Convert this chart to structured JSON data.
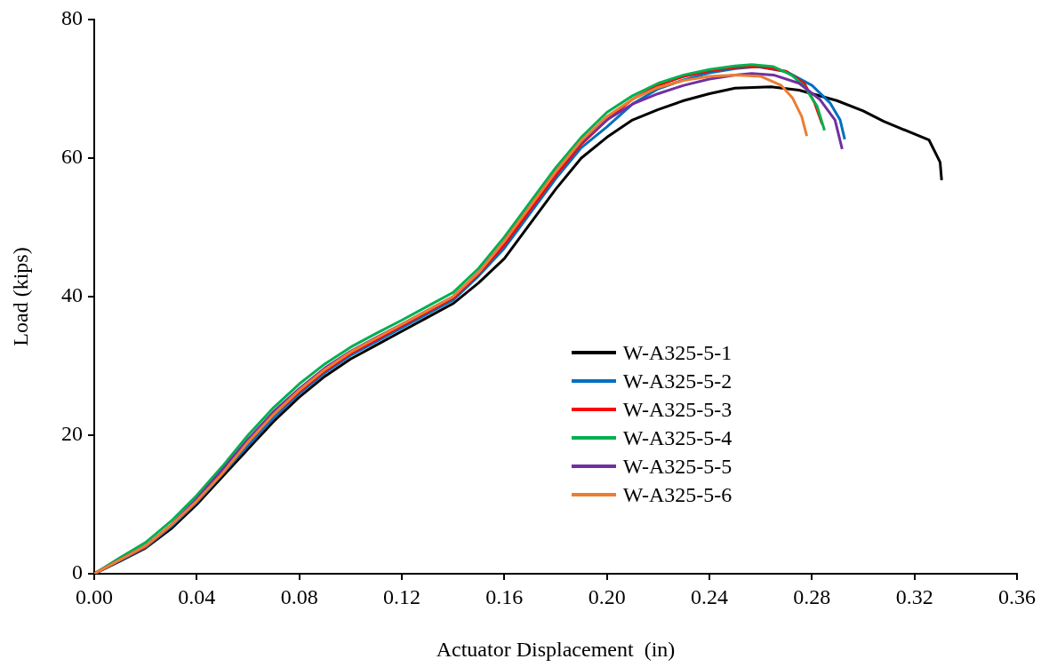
{
  "chart_data": {
    "type": "line",
    "xlabel": "Actuator Displacement  (in)",
    "ylabel": "Load (kips)",
    "xlim": [
      0,
      0.36
    ],
    "xticks": [
      {
        "value": 0,
        "label": "0.00"
      },
      {
        "value": 0.04,
        "label": "0.04"
      },
      {
        "value": 0.08,
        "label": "0.08"
      },
      {
        "value": 0.12,
        "label": "0.12"
      },
      {
        "value": 0.16,
        "label": "0.16"
      },
      {
        "value": 0.2,
        "label": "0.20"
      },
      {
        "value": 0.24,
        "label": "0.24"
      },
      {
        "value": 0.28,
        "label": "0.28"
      },
      {
        "value": 0.32,
        "label": "0.32"
      },
      {
        "value": 0.36,
        "label": "0.36"
      }
    ],
    "ylim": [
      0,
      80
    ],
    "yticks": [
      0,
      20,
      40,
      60,
      80
    ],
    "grid": false,
    "legend": "bottom right",
    "marker": "none",
    "line_style": "solid",
    "series": [
      {
        "name": "W-A325-5-1",
        "color": "#000000",
        "x": [
          0,
          0.01,
          0.02,
          0.03,
          0.04,
          0.05,
          0.06,
          0.07,
          0.08,
          0.09,
          0.1,
          0.11,
          0.12,
          0.13,
          0.14,
          0.15,
          0.16,
          0.17,
          0.18,
          0.19,
          0.2,
          0.21,
          0.22,
          0.23,
          0.24,
          0.25,
          0.264,
          0.275,
          0.2897,
          0.3,
          0.308,
          0.3257,
          0.33,
          0.3306
        ],
        "values": [
          0,
          1.8,
          3.7,
          6.5,
          10,
          14,
          18,
          22,
          25.5,
          28.5,
          31,
          33,
          35,
          37,
          39,
          42,
          45.5,
          50.5,
          55.5,
          60,
          63,
          65.5,
          67,
          68.3,
          69.3,
          70.1,
          70.3,
          69.8,
          68.3,
          66.8,
          65.3,
          62.6,
          59.4,
          56.8
        ]
      },
      {
        "name": "W-A325-5-2",
        "color": "#0070c0",
        "x": [
          0,
          0.01,
          0.02,
          0.03,
          0.04,
          0.05,
          0.06,
          0.07,
          0.08,
          0.09,
          0.1,
          0.11,
          0.12,
          0.13,
          0.14,
          0.15,
          0.16,
          0.17,
          0.18,
          0.19,
          0.2,
          0.21,
          0.22,
          0.23,
          0.24,
          0.25,
          0.2586,
          0.27,
          0.28,
          0.287,
          0.291,
          0.2928
        ],
        "values": [
          0,
          1.9,
          3.8,
          6.8,
          10.3,
          14.4,
          18.5,
          22.5,
          26,
          29,
          31.5,
          33.5,
          35.5,
          37.5,
          39.5,
          43,
          47,
          52,
          57,
          61.5,
          64.5,
          67.8,
          70,
          71.3,
          72.3,
          72.9,
          73.2,
          72.5,
          70.5,
          68,
          65.5,
          62.7
        ]
      },
      {
        "name": "W-A325-5-3",
        "color": "#ff0000",
        "x": [
          0,
          0.01,
          0.02,
          0.03,
          0.04,
          0.05,
          0.06,
          0.07,
          0.08,
          0.09,
          0.1,
          0.11,
          0.12,
          0.13,
          0.14,
          0.15,
          0.16,
          0.17,
          0.18,
          0.19,
          0.2,
          0.21,
          0.22,
          0.23,
          0.24,
          0.25,
          0.26,
          0.27,
          0.277,
          0.281,
          0.284
        ],
        "values": [
          0,
          2,
          3.9,
          7,
          10.5,
          14.5,
          19,
          23,
          26.3,
          29.3,
          31.8,
          33.8,
          35.8,
          37.8,
          39.8,
          43.3,
          47.5,
          52.5,
          57.5,
          62,
          65.5,
          68.5,
          70.5,
          71.8,
          72.6,
          73.1,
          73.2,
          72.5,
          70.8,
          68,
          64.9
        ]
      },
      {
        "name": "W-A325-5-4",
        "color": "#00b050",
        "x": [
          0,
          0.01,
          0.02,
          0.03,
          0.04,
          0.05,
          0.06,
          0.07,
          0.08,
          0.09,
          0.1,
          0.11,
          0.12,
          0.13,
          0.14,
          0.15,
          0.16,
          0.17,
          0.18,
          0.19,
          0.2,
          0.21,
          0.22,
          0.23,
          0.24,
          0.25,
          0.2565,
          0.265,
          0.272,
          0.277,
          0.282,
          0.2849
        ],
        "values": [
          0,
          2.3,
          4.5,
          7.6,
          11.3,
          15.5,
          20,
          24,
          27.4,
          30.3,
          32.7,
          34.7,
          36.6,
          38.6,
          40.6,
          44.1,
          48.6,
          53.6,
          58.6,
          63,
          66.6,
          69,
          70.8,
          72,
          72.8,
          73.3,
          73.5,
          73.2,
          72,
          70.4,
          67.5,
          64
        ]
      },
      {
        "name": "W-A325-5-5",
        "color": "#7030a0",
        "x": [
          0,
          0.01,
          0.02,
          0.03,
          0.04,
          0.05,
          0.06,
          0.07,
          0.08,
          0.09,
          0.1,
          0.11,
          0.12,
          0.13,
          0.14,
          0.15,
          0.16,
          0.17,
          0.18,
          0.19,
          0.2,
          0.21,
          0.22,
          0.23,
          0.24,
          0.25,
          0.2565,
          0.265,
          0.275,
          0.283,
          0.289,
          0.2918
        ],
        "values": [
          0,
          2,
          4,
          7,
          10.8,
          15,
          19.4,
          23.4,
          26.7,
          29.7,
          32.1,
          34.1,
          36,
          38,
          40,
          43.5,
          48,
          53,
          58,
          62.3,
          65.5,
          67.8,
          69.3,
          70.5,
          71.4,
          72,
          72.2,
          72,
          70.8,
          68.5,
          65.5,
          61.3
        ]
      },
      {
        "name": "W-A325-5-6",
        "color": "#ed7d31",
        "x": [
          0,
          0.01,
          0.02,
          0.03,
          0.04,
          0.05,
          0.06,
          0.07,
          0.08,
          0.09,
          0.1,
          0.11,
          0.12,
          0.13,
          0.14,
          0.15,
          0.16,
          0.17,
          0.18,
          0.19,
          0.2,
          0.21,
          0.22,
          0.23,
          0.24,
          0.25,
          0.26,
          0.268,
          0.2724,
          0.276,
          0.278
        ],
        "values": [
          0,
          2,
          4,
          7,
          10.5,
          14.5,
          19,
          23,
          26.5,
          29.5,
          32,
          34,
          36,
          38,
          40,
          43.5,
          48,
          53,
          58,
          62.5,
          66,
          68.5,
          70.2,
          71.2,
          71.8,
          72,
          71.8,
          70.5,
          68.7,
          66,
          63.2
        ]
      }
    ]
  }
}
